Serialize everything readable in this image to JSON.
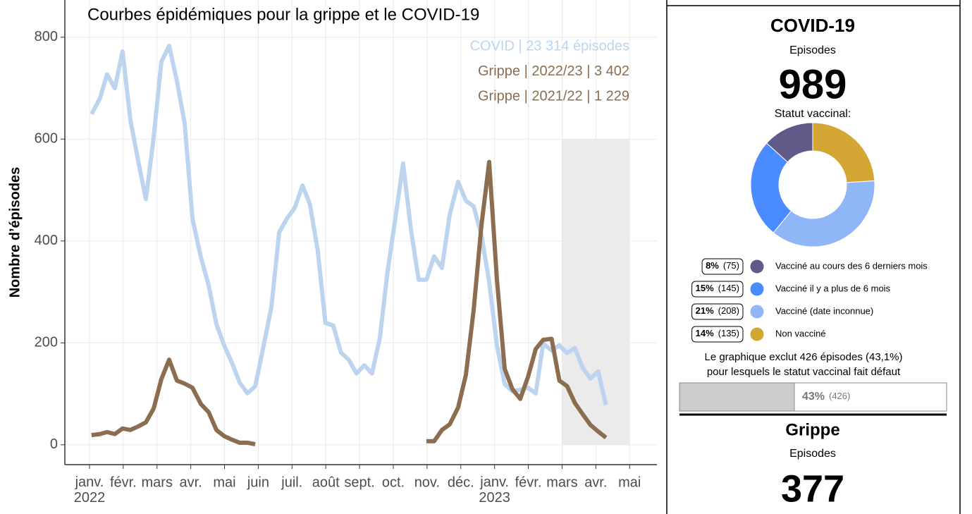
{
  "chart_data": [
    {
      "type": "line",
      "title": "Courbes épidémiques pour la grippe et le COVID-19",
      "y_label": "Nombre d’épisodes",
      "x": [
        0.06,
        0.31,
        0.52,
        0.75,
        0.98,
        1.21,
        1.44,
        1.67,
        1.9,
        2.13,
        2.36,
        2.59,
        2.82,
        3.05,
        3.3,
        3.53,
        3.76,
        3.99,
        4.22,
        4.45,
        4.68,
        4.91,
        5.16,
        5.39,
        5.62,
        5.85,
        6.08,
        6.31,
        6.53,
        6.76,
        6.99,
        7.22,
        7.45,
        7.68,
        7.91,
        8.14,
        8.37,
        8.6,
        8.83,
        9.06,
        9.29,
        9.52,
        9.75,
        9.98,
        10.21,
        10.44,
        10.67,
        10.92,
        11.15,
        11.38,
        11.61,
        11.84,
        12.07,
        12.3,
        12.53,
        12.76,
        12.99,
        13.22,
        13.44,
        13.69,
        13.92,
        14.15,
        14.38,
        14.61,
        14.84,
        15.07,
        15.3
      ],
      "series": [
        {
          "name": "COVID | 23 314 épisodes",
          "color": "#bcd4ee",
          "values": [
            649,
            680,
            727,
            700,
            772,
            638,
            558,
            482,
            603,
            752,
            783,
            714,
            631,
            444,
            368,
            313,
            237,
            195,
            161,
            122,
            101,
            115,
            195,
            271,
            417,
            444,
            465,
            509,
            472,
            382,
            239,
            234,
            181,
            167,
            140,
            156,
            140,
            209,
            340,
            444,
            552,
            424,
            324,
            324,
            370,
            347,
            451,
            516,
            479,
            468,
            412,
            320,
            195,
            119,
            105,
            108,
            112,
            101,
            199,
            185,
            195,
            180,
            190,
            151,
            130,
            144,
            78
          ]
        },
        {
          "name": "Grippe | 2022/23 | 3 402",
          "color": "#8c6d4f",
          "values": [
            null,
            null,
            null,
            null,
            null,
            null,
            null,
            null,
            null,
            null,
            null,
            null,
            null,
            null,
            null,
            null,
            null,
            null,
            null,
            null,
            null,
            null,
            null,
            null,
            null,
            null,
            null,
            null,
            null,
            null,
            null,
            null,
            null,
            null,
            null,
            null,
            null,
            null,
            null,
            null,
            null,
            null,
            null,
            7,
            7,
            29,
            40,
            73,
            137,
            264,
            430,
            555,
            324,
            149,
            109,
            90,
            133,
            188,
            206,
            208,
            126,
            115,
            82,
            60,
            39,
            26,
            14
          ]
        },
        {
          "name": "Grippe | 2021/22 | 1 229",
          "color": "#8c6d4f",
          "values": [
            19,
            21,
            25,
            21,
            32,
            29,
            36,
            44,
            71,
            129,
            167,
            126,
            120,
            112,
            80,
            64,
            29,
            17,
            10,
            4,
            4,
            1,
            null,
            null,
            null,
            null,
            null,
            null,
            null,
            null,
            null,
            null,
            null,
            null,
            null,
            null,
            null,
            null,
            null,
            null,
            null,
            null,
            null,
            null,
            null,
            null,
            null,
            null,
            null,
            null,
            null,
            null,
            null,
            null,
            null,
            null,
            null,
            null,
            null,
            null,
            null,
            null,
            null,
            null,
            null,
            null,
            null
          ]
        }
      ],
      "xlim": [
        -0.73,
        16.81
      ],
      "xticks": [
        {
          "value": 0,
          "label": "janv.\n2022"
        },
        {
          "value": 1,
          "label": "févr."
        },
        {
          "value": 2,
          "label": "mars"
        },
        {
          "value": 3,
          "label": "avr."
        },
        {
          "value": 4,
          "label": "mai"
        },
        {
          "value": 5,
          "label": "juin"
        },
        {
          "value": 6,
          "label": "juil."
        },
        {
          "value": 7,
          "label": "août"
        },
        {
          "value": 8,
          "label": "sept."
        },
        {
          "value": 9,
          "label": "oct."
        },
        {
          "value": 10,
          "label": "nov."
        },
        {
          "value": 11,
          "label": "déc."
        },
        {
          "value": 12,
          "label": "janv.\n2023"
        },
        {
          "value": 13,
          "label": "févr."
        },
        {
          "value": 14,
          "label": "mars"
        },
        {
          "value": 15,
          "label": "avr."
        },
        {
          "value": 16,
          "label": "mai"
        }
      ],
      "ylim": [
        -39,
        873
      ],
      "yticks": [
        0,
        200,
        400,
        600,
        800
      ],
      "grid": true,
      "legend": "top-right",
      "highlight": {
        "x_range": [
          14,
          16
        ],
        "y_range": [
          0,
          600
        ],
        "color": "#ebebeb"
      }
    },
    {
      "type": "pie",
      "title": "Statut vaccinal:",
      "categories": [
        "Vacciné au cours des 6 derniers mois",
        "Vacciné il y a plus de 6 mois",
        "Vacciné (date inconnue)",
        "Non vacciné"
      ],
      "values": [
        75,
        145,
        208,
        135
      ],
      "value_labels": [
        "(75)",
        "(145)",
        "(208)",
        "(135)"
      ],
      "percent_labels": [
        "8%",
        "15%",
        "21%",
        "14%"
      ],
      "colors": [
        "#5f5a87",
        "#4a8cff",
        "#8fb6f7",
        "#d4a634"
      ]
    },
    {
      "type": "progress",
      "notes": [
        "Le graphique  exclut 426 épisodes  (43,1%)",
        "pour lesquels  le statut vaccinal  fait défaut"
      ],
      "values": [
        43
      ],
      "value_labels": [
        "43%"
      ],
      "count_labels": [
        "(426)"
      ],
      "xlim": [
        0,
        100
      ]
    }
  ],
  "panel": {
    "covid": {
      "title": "COVID-19",
      "subtitle": "Episodes",
      "count": 989
    },
    "grippe": {
      "title": "Grippe",
      "subtitle": "Episodes",
      "count": 377
    }
  }
}
